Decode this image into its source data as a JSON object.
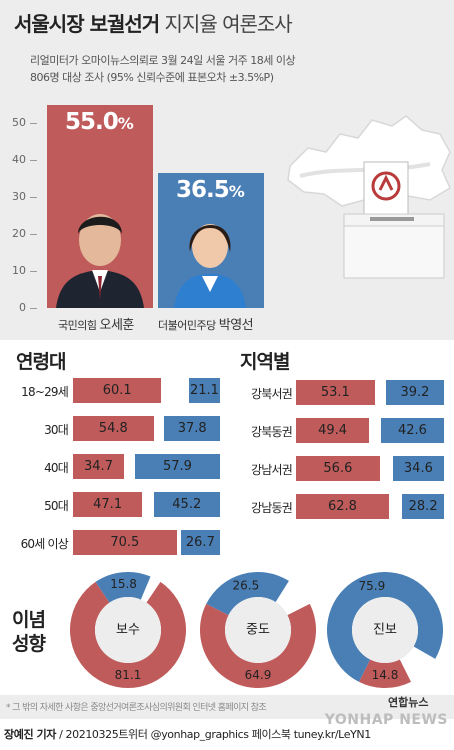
{
  "header": {
    "title_bold": "서울시장 보궐선거",
    "title_light": "지지율 여론조사",
    "subtitle_line1": "리얼미터가 오마이뉴스의뢰로 3월 24일 서울 거주 18세 이상",
    "subtitle_line2": "806명 대상 조사 (95% 신뢰수준에 표본오차 ±3.5%P)"
  },
  "chart_data": [
    {
      "type": "bar",
      "categories": [
        "국민의힘 오세훈",
        "더불어민주당 박영선"
      ],
      "parties": [
        "국민의힘",
        "더불어민주당"
      ],
      "names": [
        "오세훈",
        "박영선"
      ],
      "values": [
        55.0,
        36.5
      ],
      "value_labels": [
        "55.0",
        "36.5"
      ],
      "unit": "%",
      "ylim": [
        0,
        55
      ],
      "yticks": [
        "50",
        "40",
        "30",
        "20",
        "10",
        "0"
      ],
      "colors": [
        "#c05b5b",
        "#4a7fb5"
      ]
    },
    {
      "type": "bar",
      "title": "연령대",
      "categories": [
        "18~29세",
        "30대",
        "40대",
        "50대",
        "60세 이상"
      ],
      "series": [
        {
          "values": [
            60.1,
            54.8,
            34.7,
            47.1,
            70.5
          ],
          "color": "#c05b5b"
        },
        {
          "values": [
            21.1,
            37.8,
            57.9,
            45.2,
            26.7
          ],
          "color": "#4a7fb5"
        }
      ]
    },
    {
      "type": "bar",
      "title": "지역별",
      "categories": [
        "강북서권",
        "강북동권",
        "강남서권",
        "강남동권"
      ],
      "series": [
        {
          "values": [
            53.1,
            49.4,
            56.6,
            62.8
          ],
          "color": "#c05b5b"
        },
        {
          "values": [
            39.2,
            42.6,
            34.6,
            28.2
          ],
          "color": "#4a7fb5"
        }
      ]
    },
    {
      "type": "pie",
      "title": "이념 성향",
      "charts": [
        {
          "name": "보수",
          "red": 81.1,
          "blue": 15.8
        },
        {
          "name": "중도",
          "red": 64.9,
          "blue": 26.5
        },
        {
          "name": "진보",
          "red": 14.8,
          "blue": 75.9
        }
      ],
      "colors": {
        "red": "#c05b5b",
        "blue": "#4a7fb5",
        "other": "#ffffff",
        "inner": "#ededed"
      }
    }
  ],
  "ideology_title_1": "이념",
  "ideology_title_2": "성향",
  "footnote": "* 그 밖의 자세한 사항은 중앙선거여론조사심의위원회 인터넷 홈페이지 참조",
  "credit": {
    "author": "장예진 기자",
    "rest": "/ 20210325트위터 @yonhap_graphics  페이스북 tuney.kr/LeYN1"
  },
  "watermark": "YONHAP NEWS",
  "logo": "연합뉴스"
}
